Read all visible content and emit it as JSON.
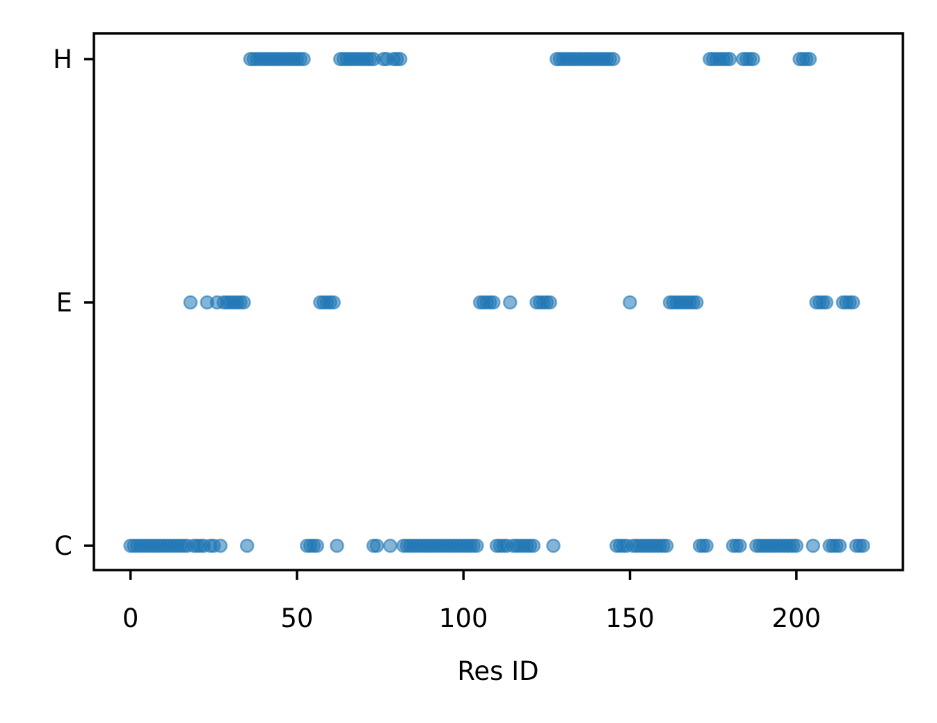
{
  "chart_data": {
    "type": "scatter",
    "xlabel": "Res ID",
    "ylabel": "",
    "xlim": [
      -11,
      232
    ],
    "x_ticks": [
      0,
      50,
      100,
      150,
      200
    ],
    "y_categories": [
      "C",
      "E",
      "H"
    ],
    "marker_color": "#1f77b4",
    "marker_alpha": 0.55,
    "grid": false,
    "points": {
      "H": [
        36,
        37,
        38,
        39,
        40,
        41,
        42,
        43,
        44,
        45,
        46,
        47,
        48,
        49,
        50,
        51,
        52,
        63,
        64,
        65,
        66,
        67,
        68,
        69,
        70,
        71,
        72,
        73,
        76,
        77,
        79,
        80,
        81,
        128,
        129,
        130,
        131,
        132,
        133,
        134,
        135,
        136,
        137,
        138,
        139,
        140,
        141,
        142,
        143,
        144,
        145,
        174,
        175,
        176,
        177,
        178,
        179,
        180,
        184,
        185,
        186,
        187,
        201,
        202,
        203,
        204
      ],
      "E": [
        18,
        23,
        26,
        28,
        29,
        30,
        31,
        32,
        33,
        34,
        57,
        58,
        59,
        60,
        61,
        105,
        106,
        107,
        108,
        109,
        114,
        122,
        123,
        124,
        125,
        126,
        150,
        162,
        163,
        164,
        165,
        166,
        167,
        168,
        169,
        170,
        206,
        207,
        208,
        209,
        214,
        215,
        216,
        217
      ],
      "C": [
        0,
        1,
        2,
        3,
        4,
        5,
        6,
        7,
        8,
        9,
        10,
        11,
        12,
        13,
        14,
        15,
        16,
        17,
        19,
        20,
        21,
        22,
        24,
        25,
        27,
        35,
        53,
        54,
        55,
        56,
        62,
        73,
        74,
        78,
        82,
        83,
        84,
        85,
        86,
        87,
        88,
        89,
        90,
        91,
        92,
        93,
        94,
        95,
        96,
        97,
        98,
        99,
        100,
        101,
        102,
        103,
        104,
        110,
        111,
        112,
        113,
        115,
        116,
        117,
        118,
        119,
        120,
        121,
        127,
        146,
        147,
        148,
        149,
        151,
        152,
        153,
        154,
        155,
        156,
        157,
        158,
        159,
        160,
        161,
        171,
        172,
        173,
        181,
        182,
        183,
        188,
        189,
        190,
        191,
        192,
        193,
        194,
        195,
        196,
        197,
        198,
        199,
        200,
        205,
        210,
        211,
        212,
        213,
        218,
        219,
        220
      ]
    }
  }
}
